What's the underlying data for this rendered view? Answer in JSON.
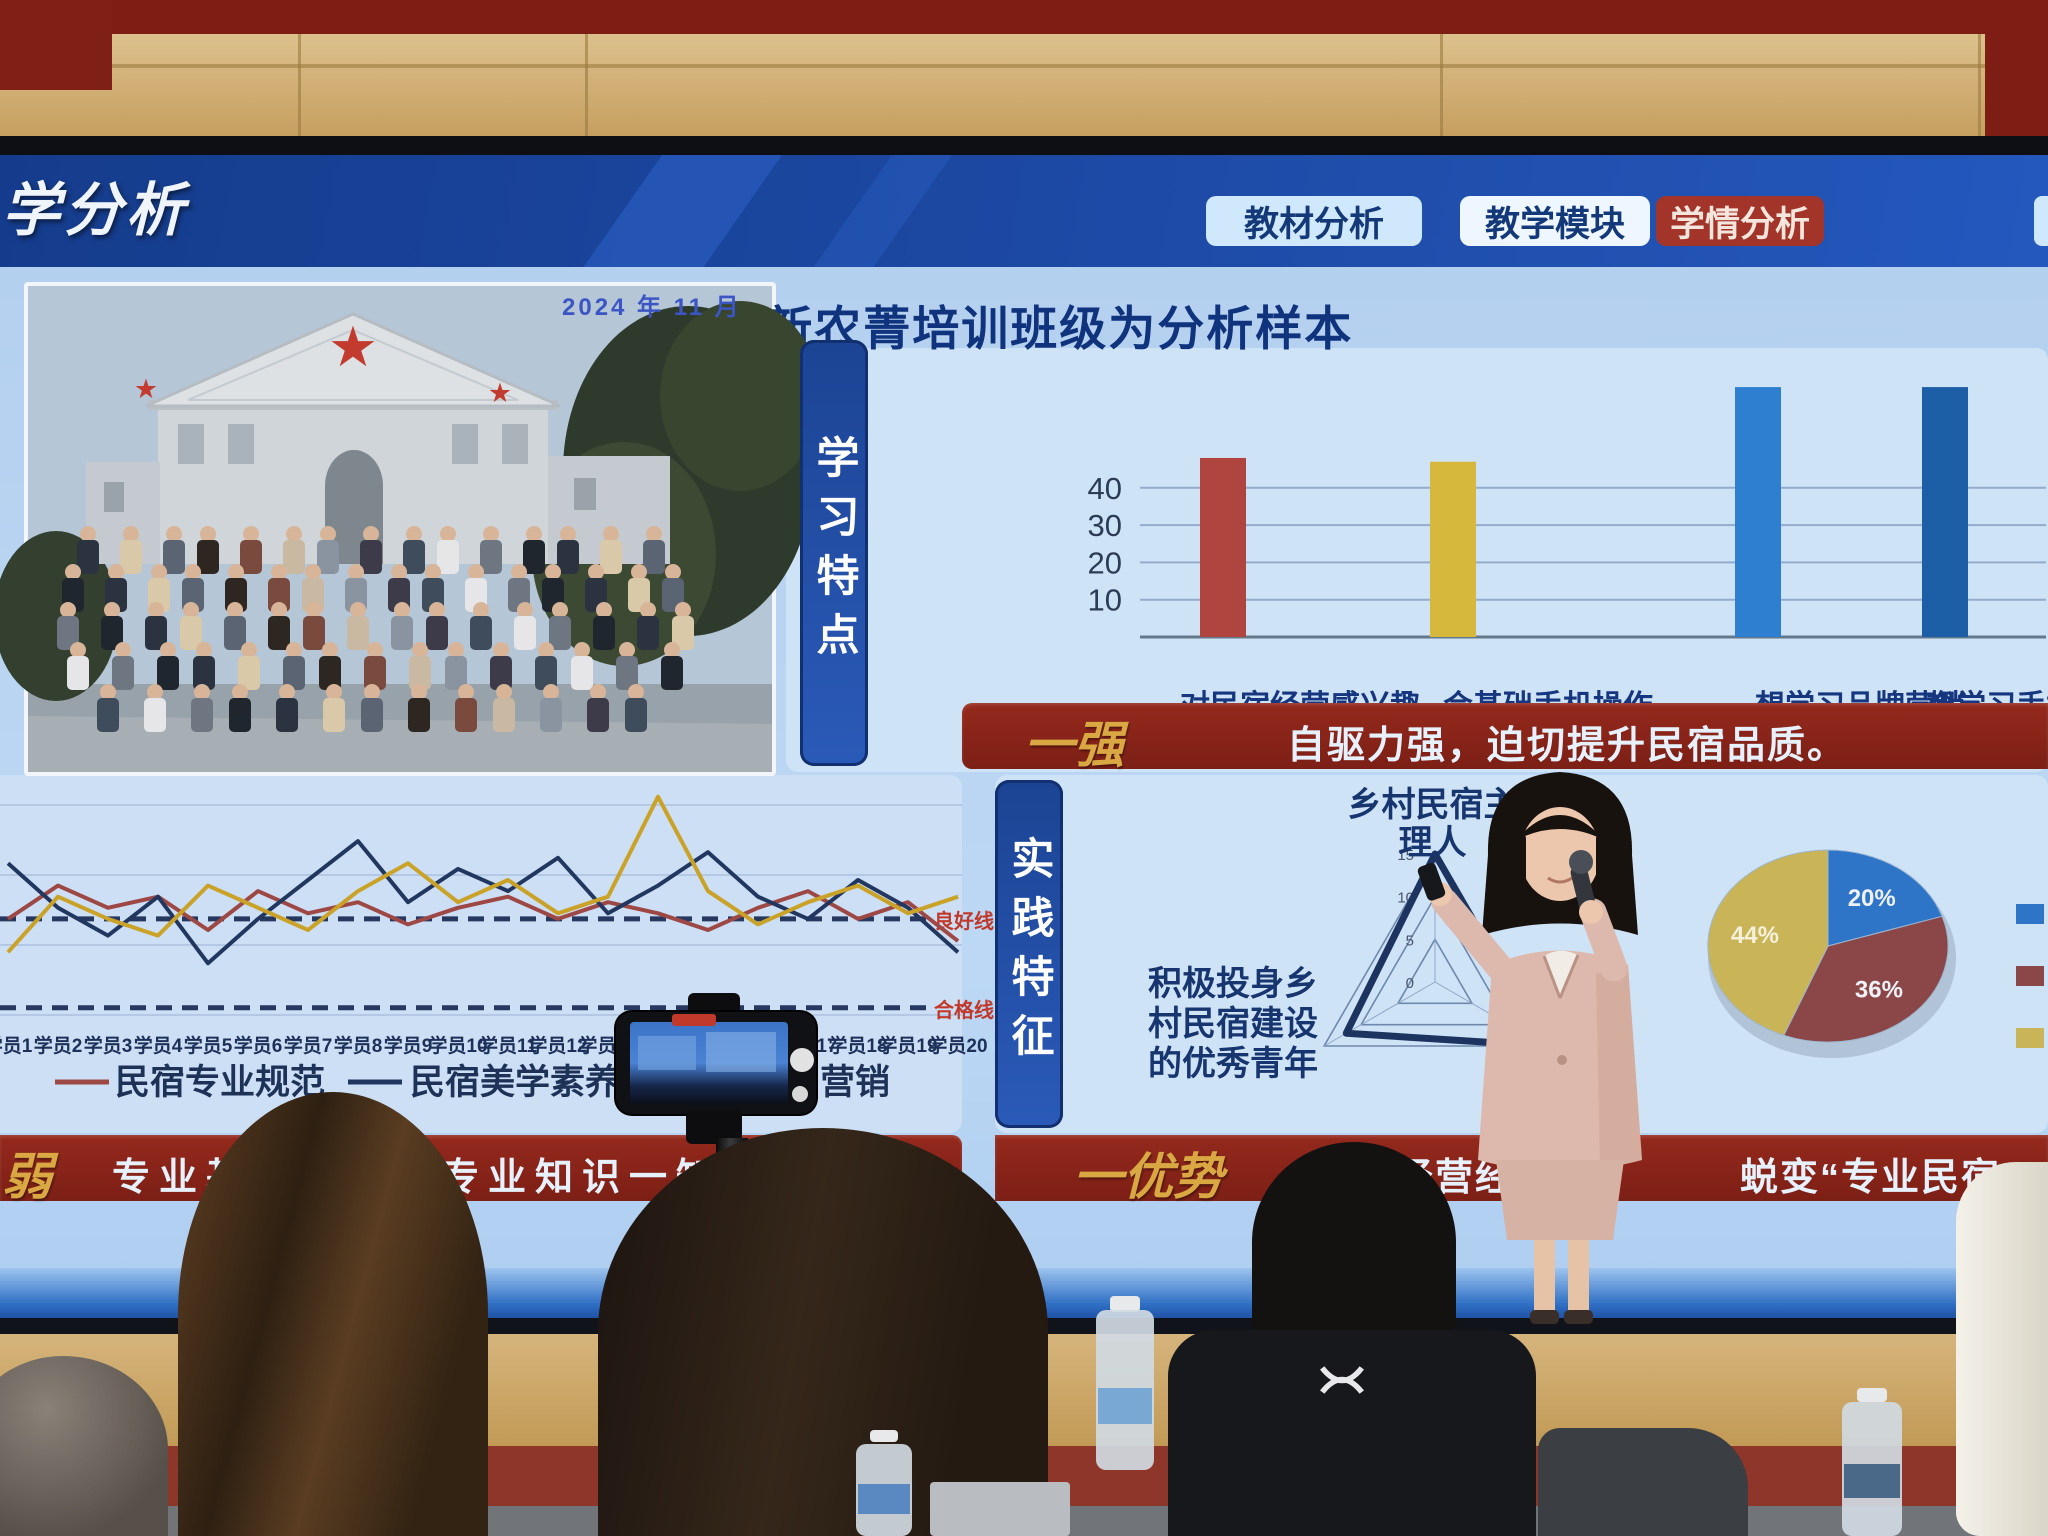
{
  "slide": {
    "header_partial_title": "学分析",
    "tabs": [
      {
        "label": "教材分析",
        "active": false
      },
      {
        "label": "教学模块",
        "active": false
      },
      {
        "label": "学情分析",
        "active": true
      }
    ],
    "title": "2024年度假区新农菁培训班级为分析样本",
    "photo_caption": "2024 年 11 月",
    "section_study": {
      "label": "学习特点",
      "banner_tag": "一强",
      "banner_text": "自驱力强，迫切提升民宿品质。"
    },
    "section_weak": {
      "banner_tag": "弱",
      "banner_text": "专业基础较弱，专业知识一知半解。"
    },
    "section_practice": {
      "label": "实践特征",
      "radar_title": [
        "乡村民宿主",
        "理人"
      ],
      "side_text": [
        "积极投身乡",
        "村民宿建设",
        "的优秀青年"
      ],
      "banner_tag": "一优势",
      "banner_fragments": [
        "经营经验",
        "蜕变“专业民宿"
      ]
    }
  },
  "chart_data": [
    {
      "type": "bar",
      "title": "学习特点",
      "categories": [
        "对民宿经营感兴趣",
        "会基础手机操作",
        "想学习品牌营销",
        "想学习手机A"
      ],
      "values": [
        48,
        47,
        67,
        67
      ],
      "colors": [
        "#b0453f",
        "#d6b83c",
        "#2f7fd0",
        "#1d5fa6"
      ],
      "yticks": [
        10,
        20,
        30,
        40
      ],
      "ylim": [
        0,
        75
      ],
      "grid": true
    },
    {
      "type": "line",
      "x_labels": [
        "学员1",
        "学员2",
        "学员3",
        "学员4",
        "学员5",
        "学员6",
        "学员7",
        "学员8",
        "学员9",
        "学员10",
        "学员11",
        "学员12",
        "学员13",
        "学员14",
        "学员15",
        "学员16",
        "学员17",
        "学员18",
        "学员19",
        "学员20"
      ],
      "series": [
        {
          "name": "民宿专业规范",
          "color": "#9e4846",
          "values": [
            70,
            76,
            72,
            74,
            68,
            75,
            71,
            73,
            69,
            72,
            74,
            70,
            73,
            71,
            68,
            72,
            75,
            70,
            73,
            66
          ]
        },
        {
          "name": "民宿美学素养",
          "color": "#223760",
          "values": [
            80,
            72,
            67,
            74,
            62,
            70,
            77,
            84,
            73,
            79,
            75,
            81,
            71,
            76,
            82,
            74,
            70,
            77,
            72,
            64
          ]
        },
        {
          "name": "营销",
          "color": "#c9a227",
          "values": [
            64,
            74,
            70,
            67,
            76,
            72,
            68,
            75,
            80,
            73,
            77,
            71,
            74,
            92,
            75,
            69,
            73,
            76,
            71,
            74
          ]
        }
      ],
      "reference_lines": [
        {
          "label": "良好线",
          "value": 70
        },
        {
          "label": "合格线",
          "value": 54
        }
      ],
      "ylim": [
        50,
        95
      ],
      "legend_position": "bottom"
    },
    {
      "type": "radar",
      "axes": [
        "乡村民宿主理人",
        "",
        ""
      ],
      "ticks": [
        0,
        5,
        10,
        15
      ],
      "max": 15,
      "values": [
        15,
        12,
        15
      ]
    },
    {
      "type": "pie",
      "labels": [
        "20%",
        "36%",
        "44%"
      ],
      "values": [
        20,
        36,
        44
      ],
      "colors": [
        "#2e75c8",
        "#8b4747",
        "#c9b458"
      ],
      "legend_position": "right"
    }
  ]
}
